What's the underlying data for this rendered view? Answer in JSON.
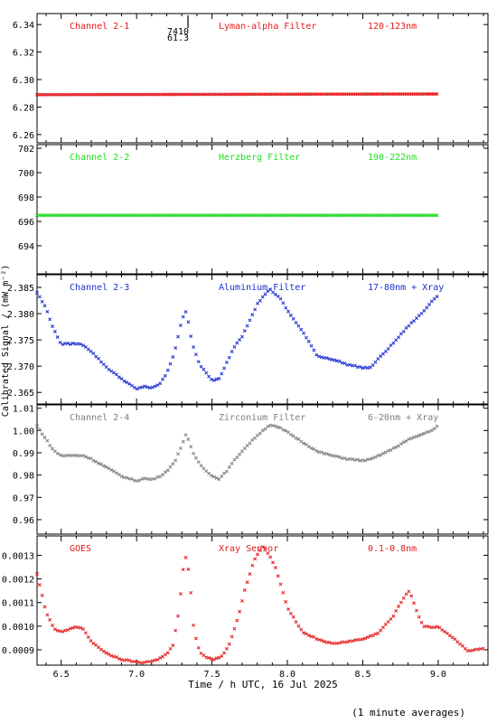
{
  "figure": {
    "ylabel": "Calibrated Signal / (mW m⁻²)",
    "xlabel": "Time / h UTC, 16 Jul 2025",
    "note": "(1 minute averages)",
    "x_range": [
      6.34,
      9.33
    ],
    "x_ticks": [
      "6.5",
      "7.0",
      "7.5",
      "8.0",
      "8.5",
      "9.0"
    ],
    "x_tick_values": [
      6.5,
      7.0,
      7.5,
      8.0,
      8.5,
      9.0
    ],
    "marker_top": "7410",
    "marker_bottom": "61.3"
  },
  "chart_data": [
    {
      "type": "scatter",
      "panel": "channel-2-1",
      "label_left": "Channel 2-1",
      "label_mid": "Lyman-alpha Filter",
      "label_right": "120-123nm",
      "color": "#e41a1c",
      "ylim": [
        6.254,
        6.348
      ],
      "yticks": [
        "6.34",
        "6.32",
        "6.30",
        "6.28",
        "6.26"
      ],
      "ytick_values": [
        6.34,
        6.32,
        6.3,
        6.28,
        6.26
      ],
      "x": [
        6.34,
        9.0
      ],
      "y": [
        6.289,
        6.2895
      ]
    },
    {
      "type": "scatter",
      "panel": "channel-2-2",
      "label_left": "Channel 2-2",
      "label_mid": "Herzberg Filter",
      "label_right": "190-222nm",
      "color": "#22dd22",
      "ylim": [
        691.7,
        702.3
      ],
      "yticks": [
        "702",
        "700",
        "698",
        "696",
        "694"
      ],
      "ytick_values": [
        702,
        700,
        698,
        696,
        694
      ],
      "x": [
        6.34,
        9.0
      ],
      "y": [
        696.5,
        696.5
      ]
    },
    {
      "type": "scatter",
      "panel": "channel-2-3",
      "label_left": "Channel 2-3",
      "label_mid": "Aluminium Filter",
      "label_right": "17-80nm + Xray",
      "color": "#1c2fcc",
      "ylim": [
        2.3628,
        2.3874
      ],
      "yticks": [
        "2.385",
        "2.380",
        "2.375",
        "2.370",
        "2.365"
      ],
      "ytick_values": [
        2.385,
        2.38,
        2.375,
        2.37,
        2.365
      ],
      "x": [
        6.34,
        6.4,
        6.45,
        6.5,
        6.6,
        6.65,
        6.7,
        6.8,
        6.9,
        7.0,
        7.05,
        7.1,
        7.15,
        7.2,
        7.25,
        7.3,
        7.33,
        7.37,
        7.42,
        7.5,
        7.55,
        7.6,
        7.65,
        7.7,
        7.8,
        7.88,
        7.95,
        8.0,
        8.1,
        8.2,
        8.3,
        8.4,
        8.5,
        8.55,
        8.6,
        8.7,
        8.8,
        8.9,
        8.97,
        9.0
      ],
      "y": [
        2.384,
        2.381,
        2.377,
        2.3742,
        2.3743,
        2.374,
        2.3728,
        2.3698,
        2.3676,
        2.3656,
        2.3662,
        2.3658,
        2.3665,
        2.3686,
        2.3725,
        2.3788,
        2.3805,
        2.3742,
        2.3702,
        2.3673,
        2.3676,
        2.3708,
        2.3738,
        2.3757,
        2.3818,
        2.3847,
        2.383,
        2.3806,
        2.3766,
        2.3719,
        2.3713,
        2.3703,
        2.3697,
        2.3697,
        2.3713,
        2.3743,
        2.3776,
        2.3803,
        2.3828,
        2.3835
      ]
    },
    {
      "type": "scatter",
      "panel": "channel-2-4",
      "label_left": "Channel 2-4",
      "label_mid": "Zirconium Filter",
      "label_right": "6-20nm + Xray",
      "color": "#7f7f7f",
      "ylim": [
        0.9535,
        1.0115
      ],
      "yticks": [
        "1.01",
        "1.00",
        "0.99",
        "0.98",
        "0.97",
        "0.96"
      ],
      "ytick_values": [
        1.01,
        1.0,
        0.99,
        0.98,
        0.97,
        0.96
      ],
      "x": [
        6.34,
        6.4,
        6.45,
        6.5,
        6.6,
        6.65,
        6.7,
        6.8,
        6.9,
        7.0,
        7.05,
        7.1,
        7.15,
        7.2,
        7.25,
        7.3,
        7.33,
        7.37,
        7.42,
        7.5,
        7.55,
        7.6,
        7.65,
        7.7,
        7.8,
        7.88,
        7.95,
        8.0,
        8.1,
        8.2,
        8.3,
        8.4,
        8.5,
        8.55,
        8.6,
        8.7,
        8.8,
        8.9,
        8.97,
        9.0
      ],
      "y": [
        1.002,
        0.996,
        0.991,
        0.9887,
        0.9888,
        0.9887,
        0.9872,
        0.9835,
        0.9795,
        0.9774,
        0.9785,
        0.978,
        0.9792,
        0.9818,
        0.9855,
        0.9935,
        0.9985,
        0.9905,
        0.9848,
        0.9795,
        0.9783,
        0.982,
        0.9868,
        0.9908,
        0.9978,
        1.0025,
        1.0012,
        0.9993,
        0.9948,
        0.9905,
        0.9887,
        0.9872,
        0.9865,
        0.987,
        0.9885,
        0.9918,
        0.9958,
        0.9985,
        1.0005,
        1.0022
      ]
    },
    {
      "type": "scatter",
      "panel": "goes",
      "label_left": "GOES",
      "label_mid": "Xray Sensor",
      "label_right": "0.1-0.8nm",
      "color": "#e41a1c",
      "ylim": [
        0.000835,
        0.001382
      ],
      "yticks": [
        "0.0013",
        "0.0012",
        "0.0011",
        "0.0010",
        "0.0009"
      ],
      "ytick_values": [
        0.0013,
        0.0012,
        0.0011,
        0.001,
        0.0009
      ],
      "x": [
        6.34,
        6.4,
        6.45,
        6.5,
        6.55,
        6.6,
        6.65,
        6.7,
        6.8,
        6.9,
        7.0,
        7.05,
        7.1,
        7.15,
        7.2,
        7.24,
        7.28,
        7.32,
        7.35,
        7.38,
        7.42,
        7.47,
        7.52,
        7.57,
        7.62,
        7.67,
        7.72,
        7.78,
        7.84,
        7.88,
        7.92,
        8.0,
        8.1,
        8.2,
        8.3,
        8.4,
        8.5,
        8.6,
        8.7,
        8.77,
        8.81,
        8.86,
        8.9,
        8.95,
        9.0,
        9.1,
        9.2,
        9.3
      ],
      "y": [
        0.00122,
        0.00106,
        0.00099,
        0.000975,
        0.000985,
        0.001,
        0.000985,
        0.000935,
        0.000885,
        0.00086,
        0.000848,
        0.000846,
        0.000852,
        0.000862,
        0.000883,
        0.000915,
        0.00106,
        0.00131,
        0.00122,
        0.00098,
        0.00089,
        0.000865,
        0.00086,
        0.000875,
        0.00093,
        0.00103,
        0.00116,
        0.00128,
        0.00134,
        0.0013,
        0.00125,
        0.00108,
        0.000975,
        0.000945,
        0.000925,
        0.000935,
        0.000945,
        0.00097,
        0.00104,
        0.00112,
        0.00115,
        0.00106,
        0.001,
        0.000995,
        0.000998,
        0.00095,
        0.000895,
        0.000905
      ]
    }
  ]
}
